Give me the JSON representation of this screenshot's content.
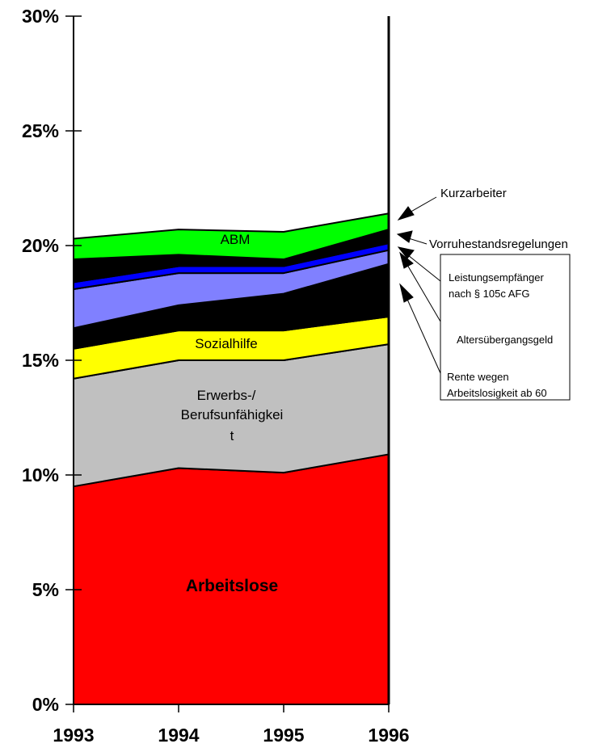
{
  "chart_data": {
    "type": "area",
    "stacked": true,
    "categories": [
      "1993",
      "1994",
      "1995",
      "1996"
    ],
    "ylim": [
      0,
      30
    ],
    "yticks": [
      "0%",
      "5%",
      "10%",
      "15%",
      "20%",
      "25%",
      "30%"
    ],
    "series": [
      {
        "name": "Arbeitslose",
        "color": "#ff0000",
        "values": [
          9.5,
          10.3,
          10.1,
          10.9
        ]
      },
      {
        "name": "Erwerbs-/ Berufsunfähigkeit",
        "color": "#c0c0c0",
        "values": [
          4.7,
          4.7,
          4.9,
          4.8
        ]
      },
      {
        "name": "Sozialhilfe",
        "color": "#ffff00",
        "values": [
          1.3,
          1.3,
          1.3,
          1.2
        ]
      },
      {
        "name": "Rente wegen Arbeitslosigkeit ab 60",
        "color": "#000000",
        "values": [
          0.9,
          1.1,
          1.6,
          2.3
        ]
      },
      {
        "name": "Altersübergangsgeld",
        "color": "#8080ff",
        "values": [
          1.7,
          1.4,
          0.9,
          0.6
        ]
      },
      {
        "name": "Leistungsempfänger nach § 105c AFG",
        "color": "#0000ff",
        "values": [
          0.3,
          0.3,
          0.3,
          0.3
        ]
      },
      {
        "name": "Vorruhestandsregelungen",
        "color": "#000000",
        "values": [
          1.0,
          0.5,
          0.3,
          0.6
        ]
      },
      {
        "name": "ABM",
        "color": "#00ff00",
        "values": [
          0.9,
          1.1,
          1.2,
          0.7
        ]
      },
      {
        "name": "Kurzarbeiter",
        "color": "#000000",
        "values": [
          0.0,
          0.0,
          0.0,
          0.0
        ]
      }
    ],
    "labels": {
      "arbeitslose": "Arbeitslose",
      "erwerbs_line1": "Erwerbs-/",
      "erwerbs_line2": "Berufsunfähigkei",
      "erwerbs_line3": "t",
      "sozialhilfe": "Sozialhilfe",
      "abm": "ABM"
    },
    "annotations": {
      "kurzarbeiter": "Kurzarbeiter",
      "vorruhestand": "Vorruhestandsregelungen",
      "leistung_line1": "Leistungsempfänger",
      "leistung_line2": "nach § 105c AFG",
      "alters": "Altersübergangsgeld",
      "rente_line1": "Rente wegen",
      "rente_line2": "Arbeitslosigkeit ab 60"
    },
    "grid": false,
    "legend": "none"
  }
}
